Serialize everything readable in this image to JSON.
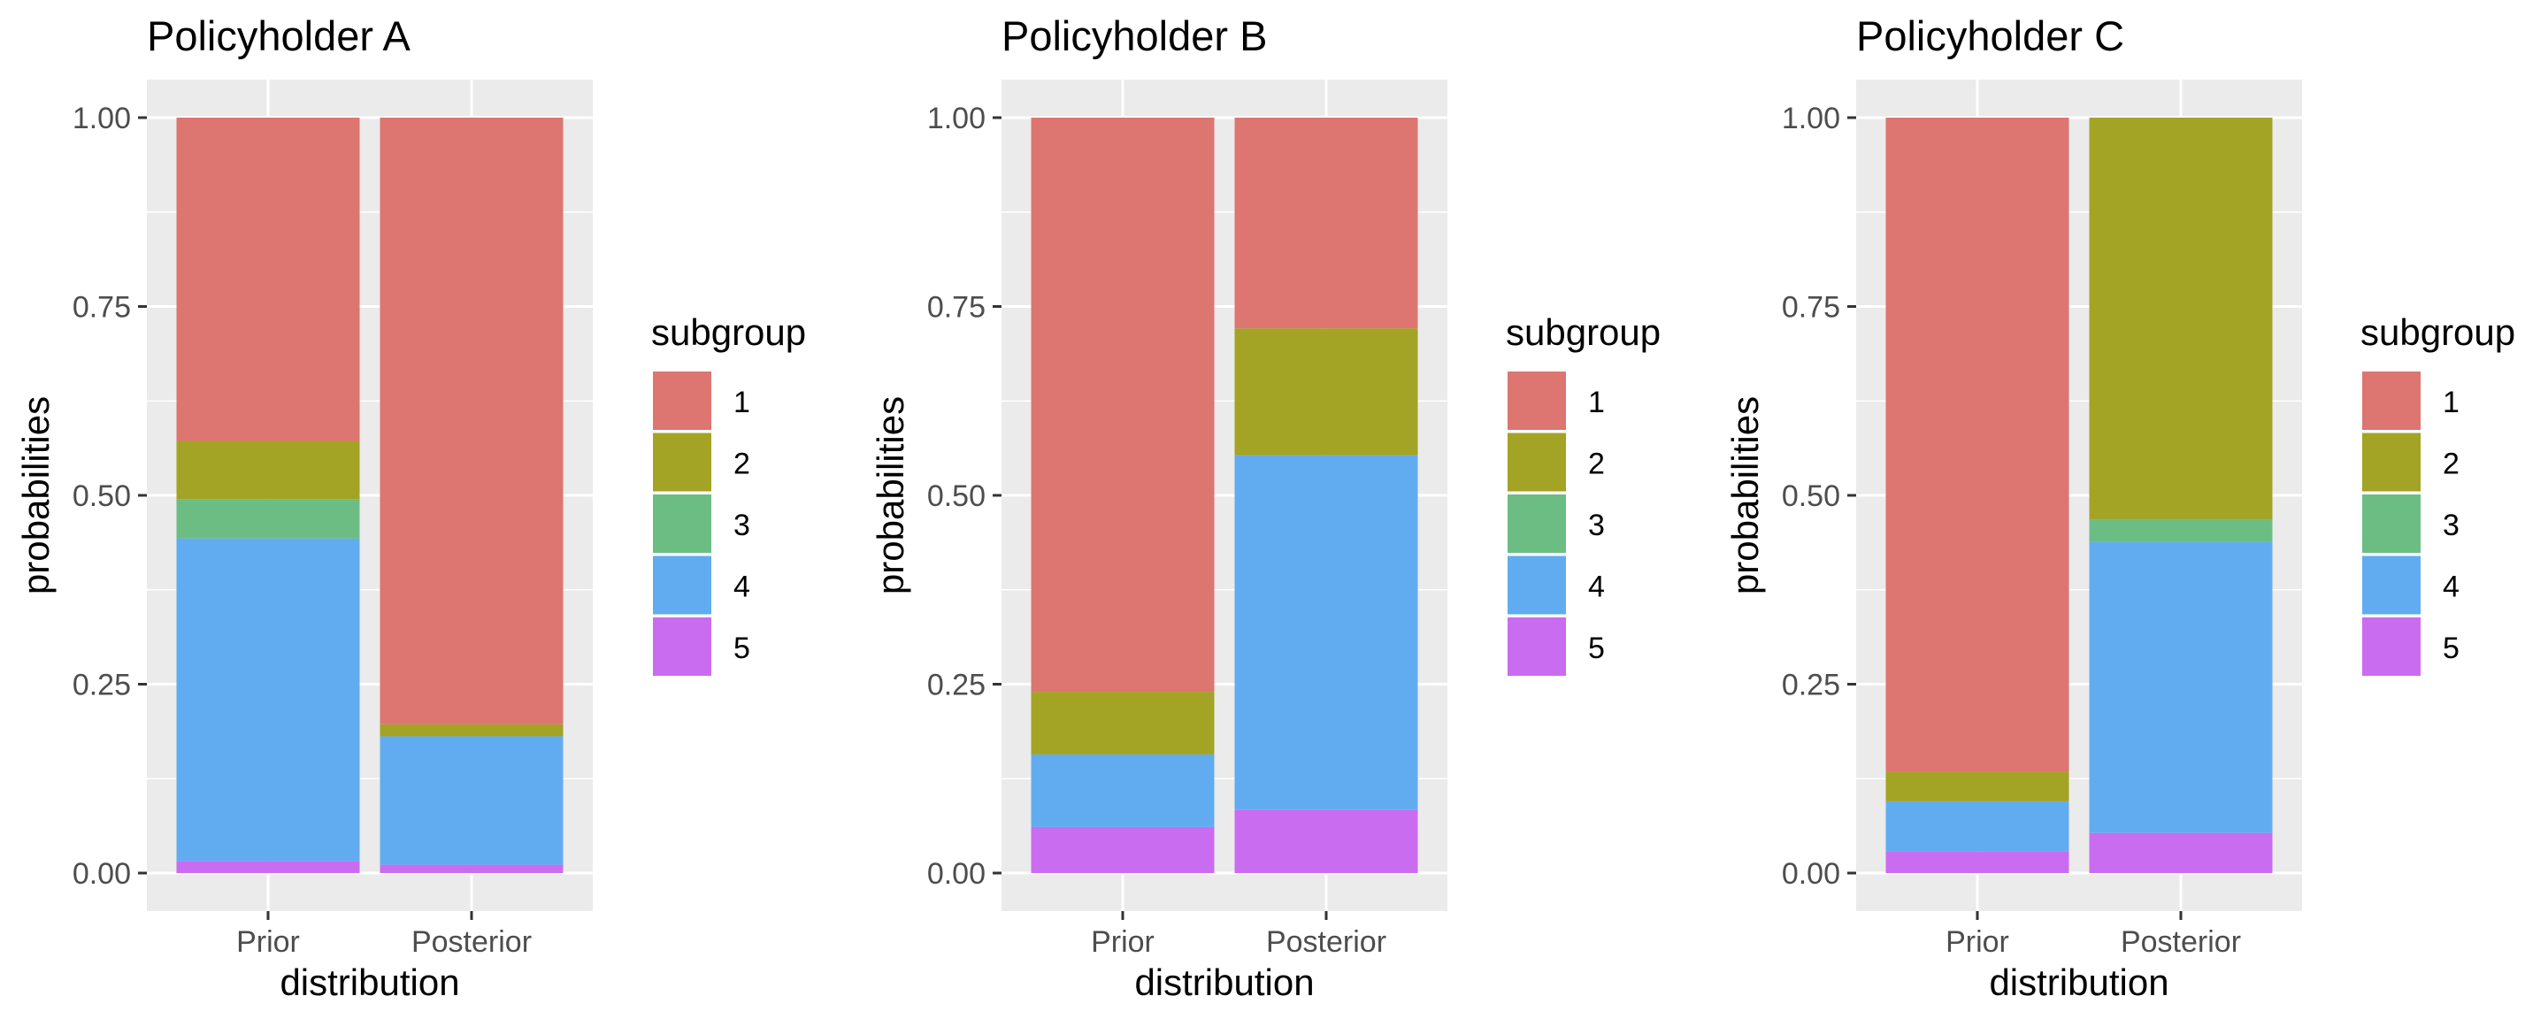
{
  "colors": {
    "panel_bg": "#ebebeb",
    "grid": "#ffffff",
    "tick": "#333333",
    "subgroups": {
      "1": "#dd7570",
      "2": "#a3a325",
      "3": "#6cbd84",
      "4": "#61acf0",
      "5": "#c96cf0"
    }
  },
  "legend": {
    "title": "subgroup",
    "items": [
      "1",
      "2",
      "3",
      "4",
      "5"
    ]
  },
  "chart_data": [
    {
      "type": "bar",
      "stacked": true,
      "title": "Policyholder A",
      "xlabel": "distribution",
      "ylabel": "probabilities",
      "categories": [
        "Prior",
        "Posterior"
      ],
      "ylim": [
        0,
        1
      ],
      "yticks": [
        "0.00",
        "0.25",
        "0.50",
        "0.75",
        "1.00"
      ],
      "grid": true,
      "legend_position": "right",
      "series": [
        {
          "name": "1",
          "values": [
            0.428,
            0.803
          ]
        },
        {
          "name": "2",
          "values": [
            0.077,
            0.016
          ]
        },
        {
          "name": "3",
          "values": [
            0.052,
            0.0
          ]
        },
        {
          "name": "4",
          "values": [
            0.427,
            0.17
          ]
        },
        {
          "name": "5",
          "values": [
            0.016,
            0.011
          ]
        }
      ]
    },
    {
      "type": "bar",
      "stacked": true,
      "title": "Policyholder B",
      "xlabel": "distribution",
      "ylabel": "probabilities",
      "categories": [
        "Prior",
        "Posterior"
      ],
      "ylim": [
        0,
        1
      ],
      "yticks": [
        "0.00",
        "0.25",
        "0.50",
        "0.75",
        "1.00"
      ],
      "grid": true,
      "legend_position": "right",
      "series": [
        {
          "name": "1",
          "values": [
            0.76,
            0.279
          ]
        },
        {
          "name": "2",
          "values": [
            0.083,
            0.168
          ]
        },
        {
          "name": "3",
          "values": [
            0.0,
            0.0
          ]
        },
        {
          "name": "4",
          "values": [
            0.096,
            0.469
          ]
        },
        {
          "name": "5",
          "values": [
            0.061,
            0.084
          ]
        }
      ]
    },
    {
      "type": "bar",
      "stacked": true,
      "title": "Policyholder C",
      "xlabel": "distribution",
      "ylabel": "probabilities",
      "categories": [
        "Prior",
        "Posterior"
      ],
      "ylim": [
        0,
        1
      ],
      "yticks": [
        "0.00",
        "0.25",
        "0.50",
        "0.75",
        "1.00"
      ],
      "grid": true,
      "legend_position": "right",
      "series": [
        {
          "name": "1",
          "values": [
            0.866,
            0.0
          ]
        },
        {
          "name": "2",
          "values": [
            0.039,
            0.532
          ]
        },
        {
          "name": "3",
          "values": [
            0.0,
            0.03
          ]
        },
        {
          "name": "4",
          "values": [
            0.066,
            0.385
          ]
        },
        {
          "name": "5",
          "values": [
            0.029,
            0.053
          ]
        }
      ]
    }
  ]
}
